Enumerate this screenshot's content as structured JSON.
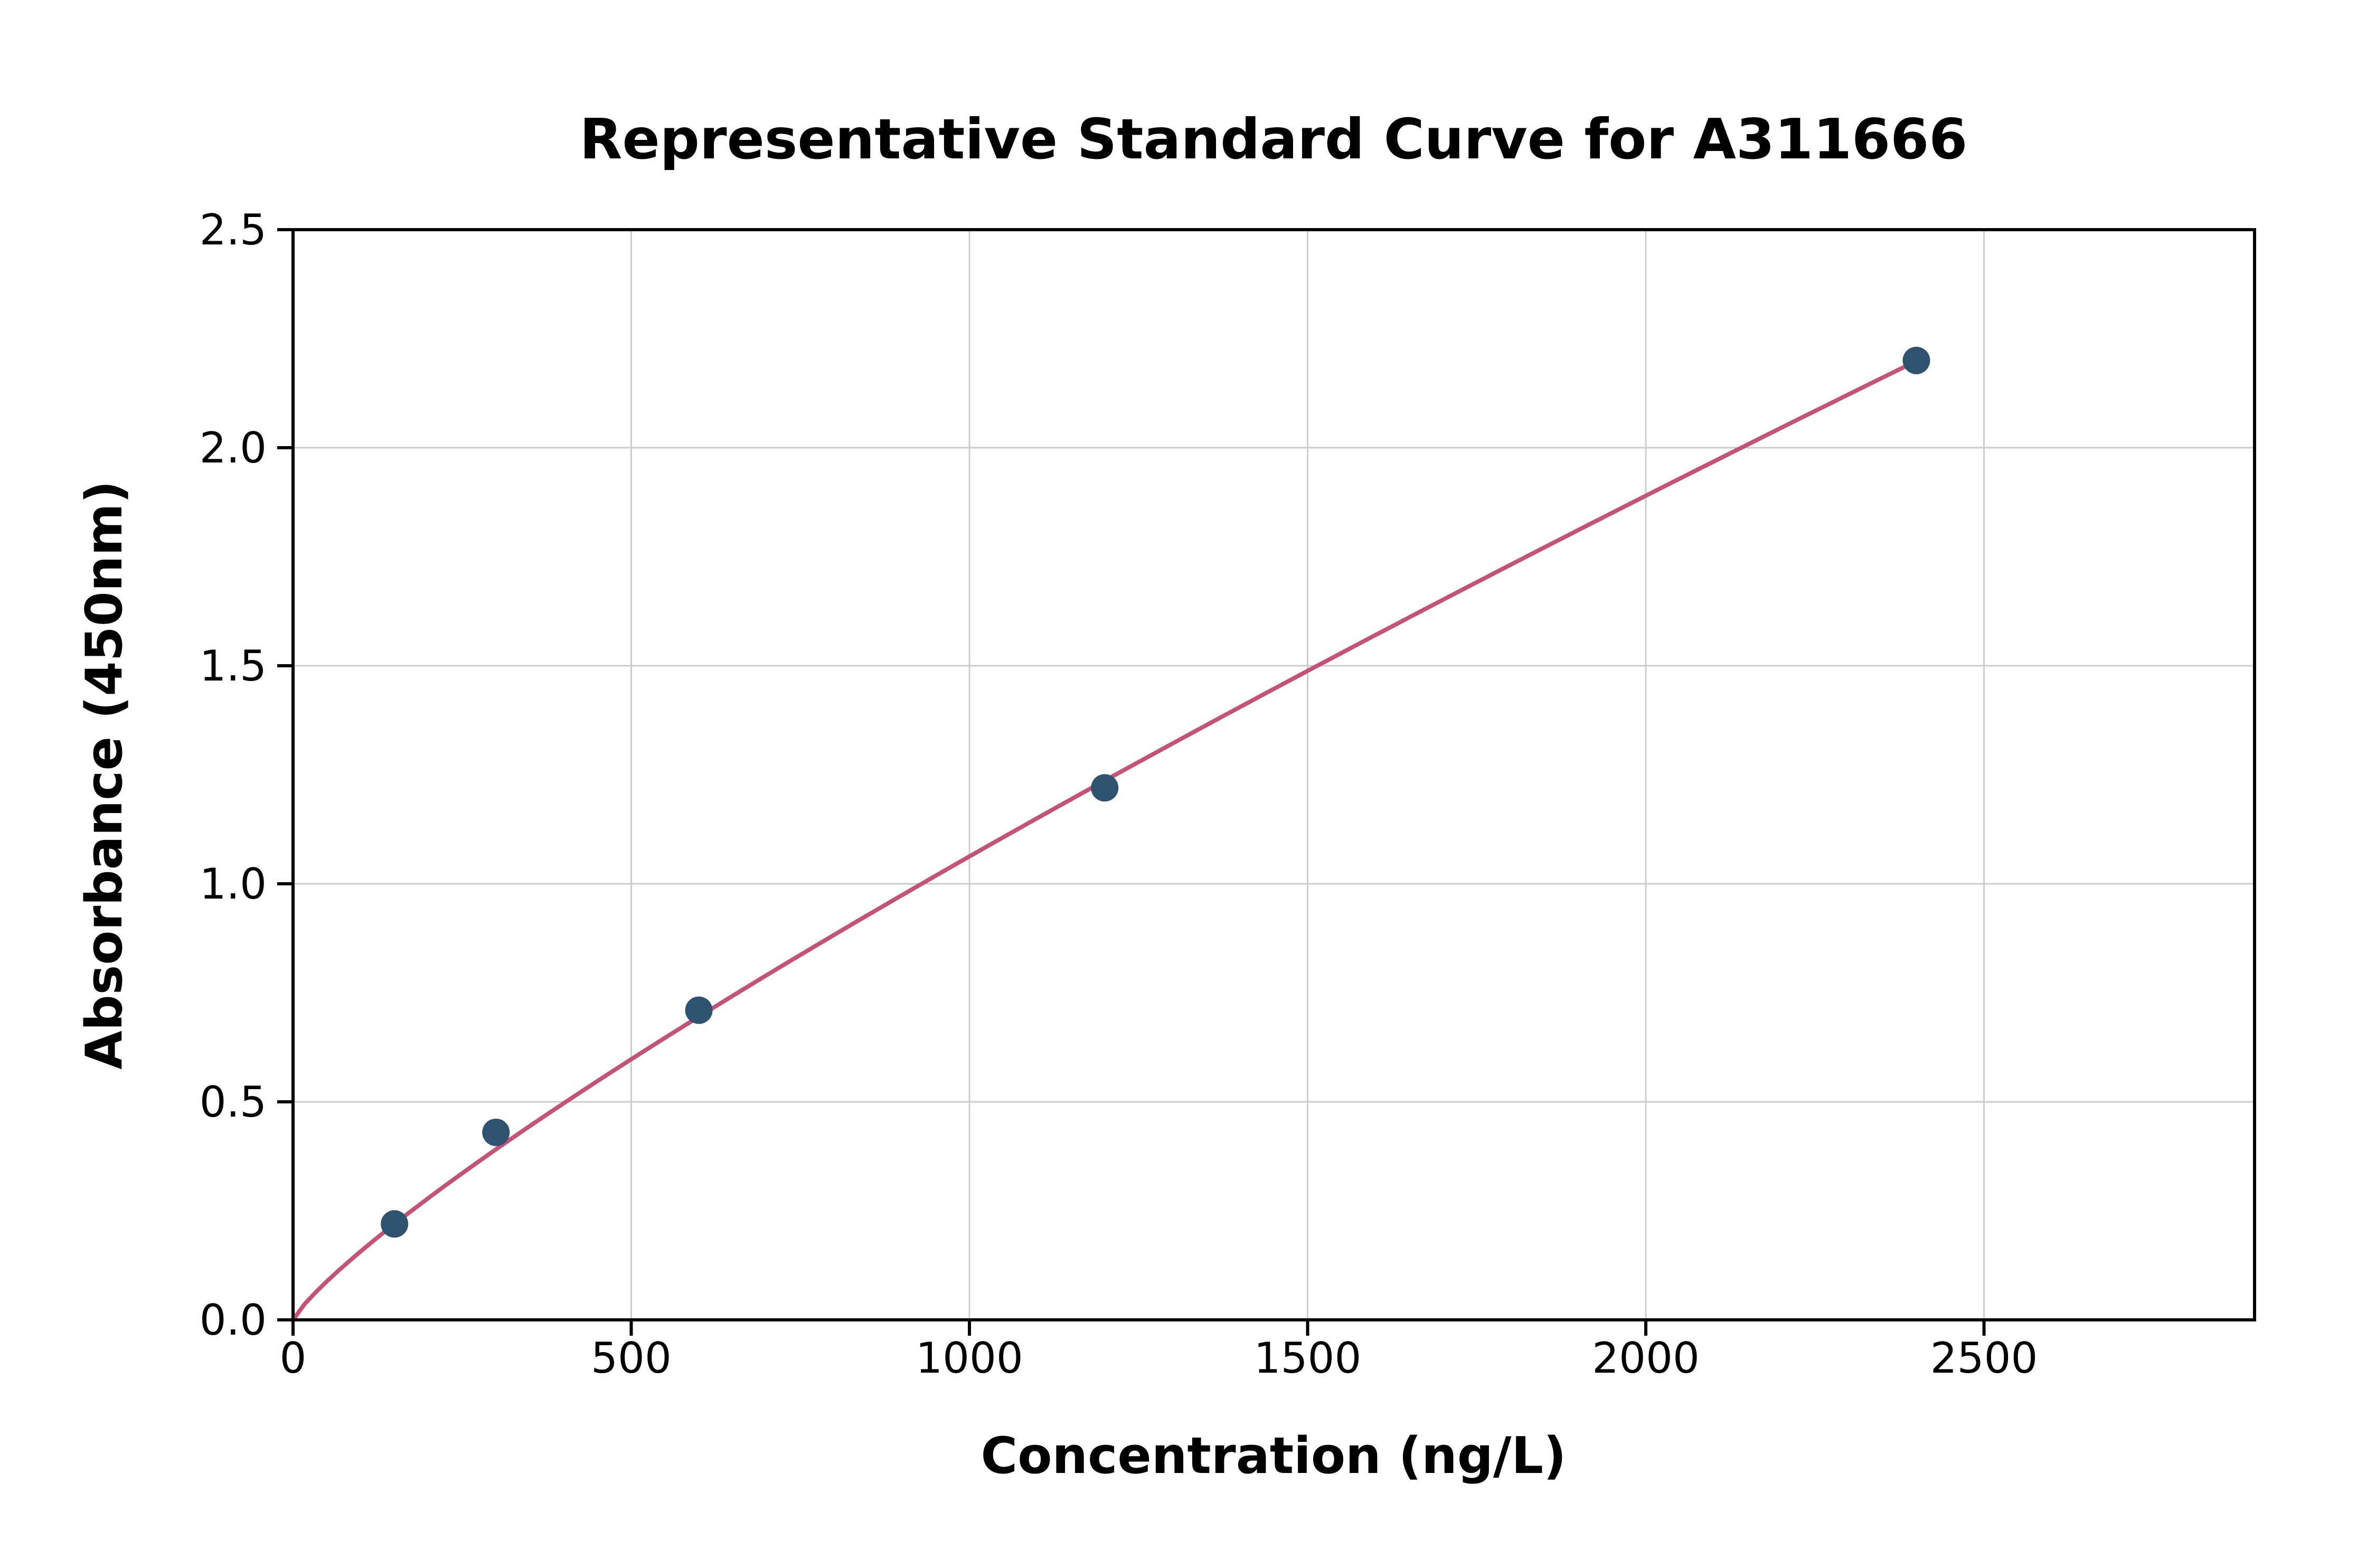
{
  "chart_data": {
    "type": "scatter",
    "title": "Representative Standard Curve for A311666",
    "xlabel": "Concentration (ng/L)",
    "ylabel": "Absorbance (450nm)",
    "xlim": [
      0,
      2900
    ],
    "ylim": [
      0,
      2.5
    ],
    "x_ticks": [
      0,
      500,
      1000,
      1500,
      2000,
      2500
    ],
    "x_tick_labels": [
      "0",
      "500",
      "1000",
      "1500",
      "2000",
      "2500"
    ],
    "y_ticks": [
      0.0,
      0.5,
      1.0,
      1.5,
      2.0,
      2.5
    ],
    "y_tick_labels": [
      "0.0",
      "0.5",
      "1.0",
      "1.5",
      "2.0",
      "2.5"
    ],
    "grid": true,
    "legend": "none",
    "points": [
      {
        "x": 150,
        "y": 0.22
      },
      {
        "x": 300,
        "y": 0.43
      },
      {
        "x": 600,
        "y": 0.71
      },
      {
        "x": 1200,
        "y": 1.22
      },
      {
        "x": 2400,
        "y": 2.2
      }
    ],
    "fit_curve": {
      "type": "power",
      "a": 0.003427,
      "b": 0.8305,
      "x_start": 0,
      "x_end": 2400
    },
    "colors": {
      "point": "#2e5270",
      "curve": "#c4537a",
      "grid": "#cccccc",
      "axis": "#000000",
      "background": "#ffffff"
    }
  }
}
